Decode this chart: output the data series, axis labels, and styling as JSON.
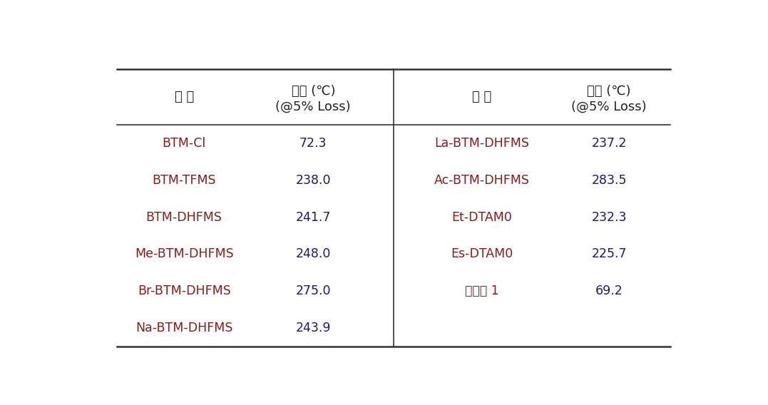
{
  "left_substances": [
    "BTM-Cl",
    "BTM-TFMS",
    "BTM-DHFMS",
    "Me-BTM-DHFMS",
    "Br-BTM-DHFMS",
    "Na-BTM-DHFMS"
  ],
  "left_temps": [
    "72.3",
    "238.0",
    "241.7",
    "248.0",
    "275.0",
    "243.9"
  ],
  "right_substances": [
    "La-BTM-DHFMS",
    "Ac-BTM-DHFMS",
    "Et-DTAM0",
    "Es-DTAM0",
    "비교예 1",
    ""
  ],
  "right_temps": [
    "237.2",
    "283.5",
    "232.3",
    "225.7",
    "69.2",
    ""
  ],
  "header_substance": "물 질",
  "header_temp_line1": "온도 (℃)",
  "header_temp_line2": "(@5% Loss)",
  "substance_color": "#8B1A1A",
  "temp_color": "#1a1a6e",
  "header_color": "#222222",
  "bg_color": "#ffffff",
  "border_color": "#333333",
  "fig_width": 10.77,
  "fig_height": 5.68,
  "dpi": 100
}
